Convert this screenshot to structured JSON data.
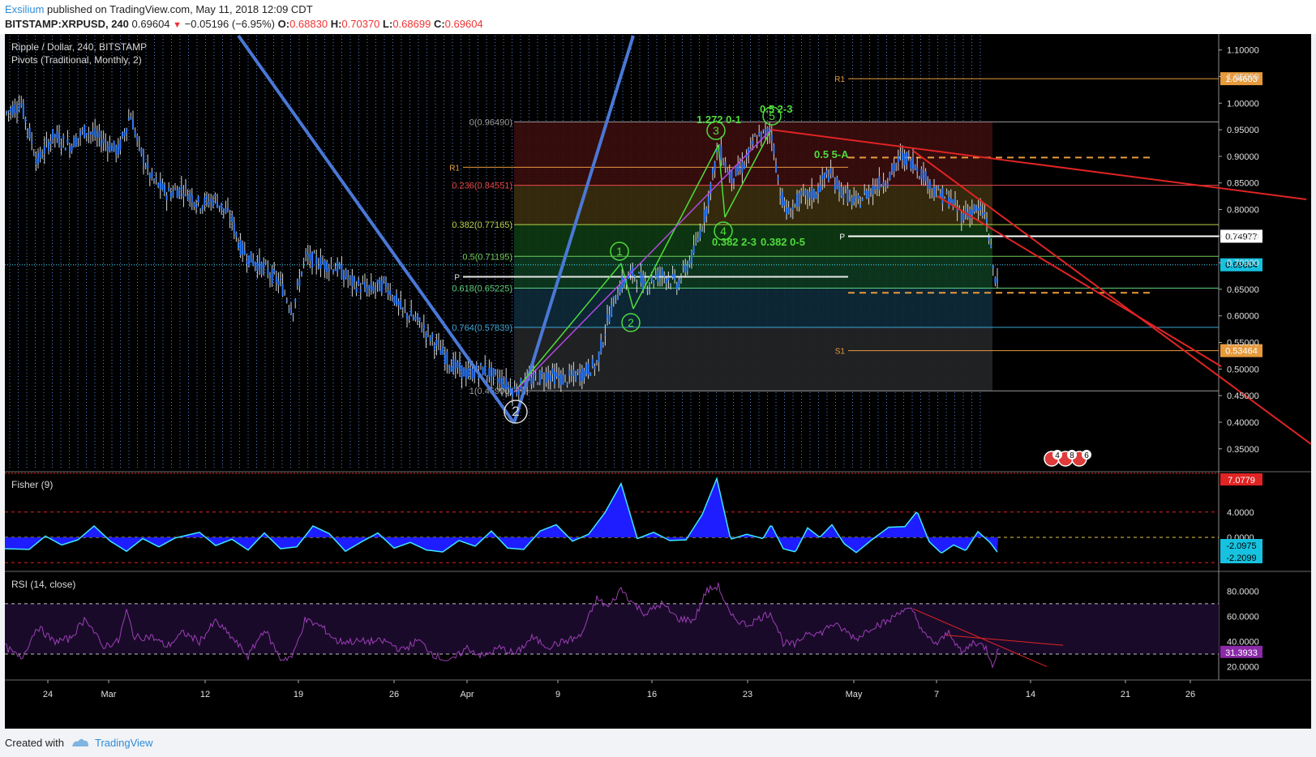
{
  "header": {
    "author": "Exsilium",
    "published": "published on TradingView.com, May 11, 2018 12:09 CDT",
    "symbol": "BITSTAMP:XRPUSD, 240",
    "last": "0.69604",
    "arrow": "▼",
    "change": "−0.05196 (−6.95%)",
    "o_label": "O:",
    "o": "0.68830",
    "h_label": "H:",
    "h": "0.70370",
    "l_label": "L:",
    "l": "0.68699",
    "c_label": "C:",
    "c": "0.69604"
  },
  "main_pane": {
    "title": "Ripple / Dollar, 240, BITSTAMP",
    "subtitle": "Pivots (Traditional, Monthly, 2)"
  },
  "fisher_pane": {
    "title": "Fisher (9)"
  },
  "rsi_pane": {
    "title": "RSI (14, close)"
  },
  "footer": {
    "created": "Created with",
    "brand": "TradingView"
  },
  "colors": {
    "bg": "#000000",
    "candle": "#2b7bff",
    "trend_blue": "#4a78d6",
    "green": "#4fdc3c",
    "red": "#e02424",
    "orange": "#e69a3c",
    "fisher": "#1d1dff",
    "fisher_edge": "#3ee6ff",
    "rsi": "#9b3fb5"
  },
  "chart_data": [
    {
      "type": "candlestick",
      "pane": "price",
      "title": "Ripple / Dollar, 240, BITSTAMP",
      "x_labels": [
        "24",
        "Mar",
        "12",
        "19",
        "26",
        "Apr",
        "9",
        "16",
        "23",
        "May",
        "7",
        "14",
        "21",
        "26"
      ],
      "y_ticks": [
        "1.10000",
        "1.05000",
        "1.00000",
        "0.95000",
        "0.90000",
        "0.85000",
        "0.80000",
        "0.75000",
        "0.70000",
        "0.65000",
        "0.60000",
        "0.55000",
        "0.50000",
        "0.45000",
        "0.40000",
        "0.35000"
      ],
      "ylim": [
        0.31,
        1.13
      ],
      "series_points": [
        [
          0,
          0.98
        ],
        [
          20,
          1.0
        ],
        [
          40,
          0.89
        ],
        [
          60,
          0.94
        ],
        [
          80,
          0.92
        ],
        [
          100,
          0.95
        ],
        [
          120,
          0.93
        ],
        [
          140,
          0.91
        ],
        [
          155,
          0.98
        ],
        [
          165,
          0.92
        ],
        [
          180,
          0.86
        ],
        [
          200,
          0.83
        ],
        [
          220,
          0.84
        ],
        [
          240,
          0.81
        ],
        [
          260,
          0.82
        ],
        [
          280,
          0.78
        ],
        [
          290,
          0.73
        ],
        [
          300,
          0.71
        ],
        [
          320,
          0.69
        ],
        [
          340,
          0.66
        ],
        [
          355,
          0.61
        ],
        [
          370,
          0.71
        ],
        [
          390,
          0.7
        ],
        [
          410,
          0.69
        ],
        [
          430,
          0.66
        ],
        [
          450,
          0.65
        ],
        [
          470,
          0.66
        ],
        [
          490,
          0.61
        ],
        [
          510,
          0.59
        ],
        [
          530,
          0.55
        ],
        [
          550,
          0.51
        ],
        [
          570,
          0.49
        ],
        [
          590,
          0.5
        ],
        [
          610,
          0.48
        ],
        [
          628,
          0.46
        ],
        [
          650,
          0.48
        ],
        [
          670,
          0.49
        ],
        [
          690,
          0.48
        ],
        [
          710,
          0.49
        ],
        [
          730,
          0.51
        ],
        [
          745,
          0.6
        ],
        [
          760,
          0.66
        ],
        [
          775,
          0.68
        ],
        [
          790,
          0.66
        ],
        [
          810,
          0.68
        ],
        [
          830,
          0.66
        ],
        [
          850,
          0.72
        ],
        [
          865,
          0.8
        ],
        [
          880,
          0.92
        ],
        [
          895,
          0.86
        ],
        [
          910,
          0.88
        ],
        [
          925,
          0.93
        ],
        [
          945,
          0.95
        ],
        [
          955,
          0.84
        ],
        [
          965,
          0.79
        ],
        [
          980,
          0.82
        ],
        [
          1000,
          0.83
        ],
        [
          1015,
          0.87
        ],
        [
          1030,
          0.84
        ],
        [
          1050,
          0.81
        ],
        [
          1070,
          0.84
        ],
        [
          1090,
          0.86
        ],
        [
          1105,
          0.9
        ],
        [
          1120,
          0.89
        ],
        [
          1135,
          0.86
        ],
        [
          1150,
          0.83
        ],
        [
          1165,
          0.82
        ],
        [
          1180,
          0.79
        ],
        [
          1195,
          0.8
        ],
        [
          1210,
          0.79
        ],
        [
          1218,
          0.7
        ],
        [
          1222,
          0.66
        ],
        [
          1226,
          0.69
        ]
      ],
      "fib_levels": [
        {
          "label": "0(0.96490)",
          "value": 0.9649
        },
        {
          "label": "0.236(0.84551)",
          "value": 0.84551
        },
        {
          "label": "0.382(0.77165)",
          "value": 0.77165
        },
        {
          "label": "0.5(0.71195)",
          "value": 0.71195
        },
        {
          "label": "0.618(0.65225)",
          "value": 0.65225
        },
        {
          "label": "0.764(0.57839)",
          "value": 0.57839
        },
        {
          "label": "1(0.45900)",
          "value": 0.459
        }
      ],
      "pivots": [
        {
          "label": "R1",
          "value": 1.04603,
          "tag": "1.04603"
        },
        {
          "label": "P",
          "value": 0.74977,
          "tag": "0.74977"
        },
        {
          "label": "S1",
          "value": 0.53464,
          "tag": "0.53464"
        },
        {
          "label": "R1",
          "value": 0.8795
        },
        {
          "label": "P",
          "value": 0.6735
        }
      ],
      "last_price_tag": "0.69604",
      "wave_labels": [
        "2",
        "1",
        "2",
        "3",
        "4",
        "5"
      ],
      "annotations": [
        "1.272 0-1",
        "0.5 2-3",
        "0.5 5-A",
        "0.382 2-3",
        "0.382 0-5"
      ]
    },
    {
      "type": "area",
      "pane": "fisher",
      "title": "Fisher (9)",
      "y_ticks": [
        "4.0000",
        "0.0000"
      ],
      "tags": [
        "7.0779",
        "-2.0975",
        "-2.2099"
      ],
      "points": [
        [
          0,
          -1.8
        ],
        [
          30,
          -1.9
        ],
        [
          50,
          0.2
        ],
        [
          70,
          -1.2
        ],
        [
          90,
          -0.4
        ],
        [
          110,
          1.8
        ],
        [
          130,
          -0.6
        ],
        [
          150,
          -2.2
        ],
        [
          170,
          -0.2
        ],
        [
          190,
          -1.5
        ],
        [
          210,
          -0.1
        ],
        [
          240,
          0.8
        ],
        [
          260,
          -1.3
        ],
        [
          280,
          -0.3
        ],
        [
          300,
          -2.0
        ],
        [
          320,
          0.7
        ],
        [
          340,
          -1.8
        ],
        [
          360,
          -1.5
        ],
        [
          380,
          1.8
        ],
        [
          400,
          0.6
        ],
        [
          420,
          -2.2
        ],
        [
          440,
          -0.7
        ],
        [
          460,
          0.7
        ],
        [
          480,
          -1.7
        ],
        [
          500,
          -0.8
        ],
        [
          520,
          -2.0
        ],
        [
          540,
          -2.3
        ],
        [
          560,
          -0.5
        ],
        [
          580,
          -1.4
        ],
        [
          600,
          1.0
        ],
        [
          620,
          -1.7
        ],
        [
          640,
          -1.9
        ],
        [
          660,
          1.0
        ],
        [
          680,
          2.0
        ],
        [
          700,
          -0.6
        ],
        [
          720,
          0.5
        ],
        [
          740,
          3.9
        ],
        [
          760,
          8.5
        ],
        [
          780,
          -0.2
        ],
        [
          800,
          0.8
        ],
        [
          820,
          -0.5
        ],
        [
          840,
          -0.4
        ],
        [
          860,
          3.6
        ],
        [
          878,
          9.3
        ],
        [
          895,
          -0.3
        ],
        [
          915,
          0.5
        ],
        [
          935,
          -0.2
        ],
        [
          945,
          2.0
        ],
        [
          960,
          -1.8
        ],
        [
          975,
          -2.3
        ],
        [
          990,
          1.5
        ],
        [
          1005,
          0.0
        ],
        [
          1020,
          2.0
        ],
        [
          1035,
          -1.0
        ],
        [
          1050,
          -2.4
        ],
        [
          1070,
          -0.3
        ],
        [
          1090,
          1.6
        ],
        [
          1110,
          1.7
        ],
        [
          1125,
          4.1
        ],
        [
          1140,
          -0.7
        ],
        [
          1155,
          -2.5
        ],
        [
          1170,
          -1.2
        ],
        [
          1185,
          -2.1
        ],
        [
          1200,
          0.9
        ],
        [
          1215,
          -0.8
        ],
        [
          1225,
          -2.5
        ]
      ]
    },
    {
      "type": "line",
      "pane": "rsi",
      "title": "RSI (14, close)",
      "y_ticks": [
        "80.0000",
        "60.0000",
        "40.0000",
        "20.0000"
      ],
      "tag": "31.3933",
      "points": [
        [
          0,
          36
        ],
        [
          20,
          26
        ],
        [
          40,
          52
        ],
        [
          60,
          40
        ],
        [
          80,
          42
        ],
        [
          100,
          59
        ],
        [
          120,
          36
        ],
        [
          140,
          40
        ],
        [
          150,
          64
        ],
        [
          160,
          43
        ],
        [
          180,
          44
        ],
        [
          200,
          36
        ],
        [
          220,
          47
        ],
        [
          240,
          40
        ],
        [
          260,
          56
        ],
        [
          280,
          43
        ],
        [
          300,
          28
        ],
        [
          320,
          50
        ],
        [
          340,
          26
        ],
        [
          355,
          28
        ],
        [
          370,
          57
        ],
        [
          390,
          52
        ],
        [
          410,
          40
        ],
        [
          430,
          40
        ],
        [
          450,
          40
        ],
        [
          470,
          40
        ],
        [
          490,
          33
        ],
        [
          510,
          41
        ],
        [
          530,
          29
        ],
        [
          550,
          24
        ],
        [
          570,
          35
        ],
        [
          590,
          28
        ],
        [
          610,
          35
        ],
        [
          630,
          30
        ],
        [
          650,
          43
        ],
        [
          670,
          36
        ],
        [
          690,
          40
        ],
        [
          710,
          44
        ],
        [
          730,
          74
        ],
        [
          745,
          67
        ],
        [
          760,
          82
        ],
        [
          775,
          70
        ],
        [
          790,
          62
        ],
        [
          810,
          70
        ],
        [
          830,
          58
        ],
        [
          850,
          57
        ],
        [
          865,
          80
        ],
        [
          880,
          84
        ],
        [
          895,
          60
        ],
        [
          915,
          53
        ],
        [
          935,
          60
        ],
        [
          945,
          63
        ],
        [
          960,
          39
        ],
        [
          975,
          37
        ],
        [
          990,
          48
        ],
        [
          1005,
          46
        ],
        [
          1020,
          54
        ],
        [
          1035,
          49
        ],
        [
          1050,
          42
        ],
        [
          1070,
          52
        ],
        [
          1090,
          56
        ],
        [
          1105,
          65
        ],
        [
          1120,
          64
        ],
        [
          1135,
          44
        ],
        [
          1150,
          38
        ],
        [
          1165,
          48
        ],
        [
          1180,
          30
        ],
        [
          1195,
          40
        ],
        [
          1210,
          35
        ],
        [
          1218,
          22
        ],
        [
          1226,
          34
        ]
      ]
    }
  ]
}
